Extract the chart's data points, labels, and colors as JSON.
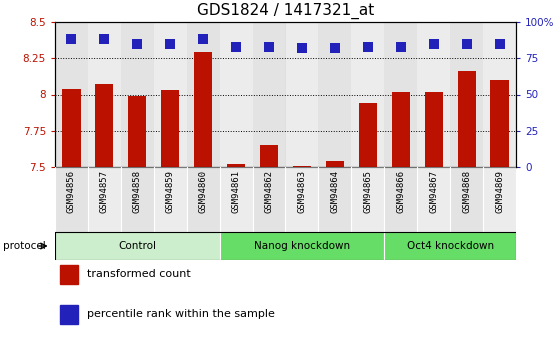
{
  "title": "GDS1824 / 1417321_at",
  "samples": [
    "GSM94856",
    "GSM94857",
    "GSM94858",
    "GSM94859",
    "GSM94860",
    "GSM94861",
    "GSM94862",
    "GSM94863",
    "GSM94864",
    "GSM94865",
    "GSM94866",
    "GSM94867",
    "GSM94868",
    "GSM94869"
  ],
  "transformed_counts": [
    8.04,
    8.07,
    7.99,
    8.03,
    8.29,
    7.52,
    7.65,
    7.51,
    7.54,
    7.94,
    8.02,
    8.02,
    8.16,
    8.1
  ],
  "percentile_ranks": [
    88,
    88,
    85,
    85,
    88,
    83,
    83,
    82,
    82,
    83,
    83,
    85,
    85,
    85
  ],
  "groups": [
    {
      "label": "Control",
      "start": 0,
      "end": 5,
      "color": "#cceecc"
    },
    {
      "label": "Nanog knockdown",
      "start": 5,
      "end": 10,
      "color": "#66dd66"
    },
    {
      "label": "Oct4 knockdown",
      "start": 10,
      "end": 14,
      "color": "#66dd66"
    }
  ],
  "ylim_left": [
    7.5,
    8.5
  ],
  "ylim_right": [
    0,
    100
  ],
  "yticks_left": [
    7.5,
    7.75,
    8.0,
    8.25,
    8.5
  ],
  "yticks_right": [
    0,
    25,
    50,
    75,
    100
  ],
  "ytick_labels_left": [
    "7.5",
    "7.75",
    "8",
    "8.25",
    "8.5"
  ],
  "ytick_labels_right": [
    "0",
    "25",
    "50",
    "75",
    "100%"
  ],
  "bar_color": "#bb1100",
  "dot_color": "#2222bb",
  "bar_width": 0.55,
  "dot_size": 45,
  "title_fontsize": 11,
  "tick_fontsize": 7.5,
  "label_fontsize": 6.5,
  "legend_fontsize": 8,
  "protocol_label": "protocol",
  "col_bg_even": "#cccccc",
  "col_bg_odd": "#dddddd"
}
